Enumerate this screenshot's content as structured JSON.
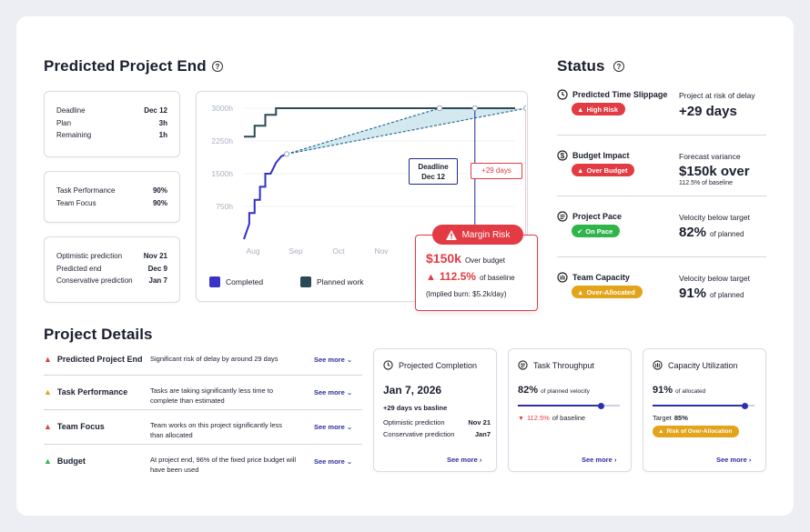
{
  "predicted": {
    "title": "Predicted Project End",
    "help": "?",
    "card1": [
      {
        "k": "Deadline",
        "v": "Dec 12"
      },
      {
        "k": "Plan",
        "v": "3h"
      },
      {
        "k": "Remaining",
        "v": "1h"
      }
    ],
    "card2": [
      {
        "k": "Task Performance",
        "v": "90%"
      },
      {
        "k": "Team Focus",
        "v": "90%"
      }
    ],
    "card3": [
      {
        "k": "Optimistic prediction",
        "v": "Nov 21"
      },
      {
        "k": "Predicted end",
        "v": "Dec 9"
      },
      {
        "k": "Conservative prediction",
        "v": "Jan 7"
      }
    ]
  },
  "chart_data": {
    "type": "line",
    "title": "",
    "y_ticks": [
      "3000h",
      "2250h",
      "1500h",
      "750h"
    ],
    "ylim": [
      0,
      3000
    ],
    "x_ticks": [
      "Aug",
      "Sep",
      "Oct",
      "Nov"
    ],
    "series": [
      {
        "name": "Completed",
        "color": "#2f2fcc",
        "points": [
          [
            0,
            0
          ],
          [
            0.5,
            350
          ],
          [
            0.5,
            600
          ],
          [
            1,
            600
          ],
          [
            1,
            900
          ],
          [
            1.5,
            900
          ],
          [
            1.5,
            1200
          ],
          [
            2,
            1200
          ],
          [
            2,
            1500
          ],
          [
            2.5,
            1500
          ],
          [
            3,
            1750
          ],
          [
            3.5,
            1900
          ],
          [
            4,
            1950
          ]
        ]
      },
      {
        "name": "Planned work",
        "color": "#2b4a55",
        "points": [
          [
            0,
            2350
          ],
          [
            1,
            2350
          ],
          [
            1,
            2600
          ],
          [
            2,
            2600
          ],
          [
            2,
            2850
          ],
          [
            3,
            2850
          ],
          [
            3,
            3000
          ],
          [
            12,
            3000
          ]
        ]
      }
    ],
    "legend": [
      "Completed",
      "Planned work"
    ],
    "deadline_label": "Deadline",
    "deadline_date": "Dec 12",
    "delay_label": "+29 days"
  },
  "risk": {
    "badge": "Margin Risk",
    "amount": "$150k",
    "amount_text": "Over budget",
    "pct": "112.5%",
    "pct_text": "of baseline",
    "burn": "(Implied burn: $5.2k/day)"
  },
  "status": {
    "title": "Status",
    "help": "?",
    "rows": [
      {
        "name": "Predicted Time Slippage",
        "pill": "High Risk",
        "pill_color": "#e23b43",
        "caption": "Project at risk of delay",
        "value": "+29 days",
        "value_suffix": "",
        "sub": ""
      },
      {
        "name": "Budget Impact",
        "pill": "Over Budget",
        "pill_color": "#e23b43",
        "caption": "Forecast variance",
        "value": "$150k over",
        "value_suffix": "",
        "sub": "112.5% of baseline"
      },
      {
        "name": "Project Pace",
        "pill": "On Pace",
        "pill_color": "#2fb54a",
        "caption": "Velocity below target",
        "value": "82%",
        "value_suffix": "of planned",
        "sub": ""
      },
      {
        "name": "Team Capacity",
        "pill": "Over-Allocated",
        "pill_color": "#e3a41b",
        "caption": "Velocity below target",
        "value": "91%",
        "value_suffix": "of planned",
        "sub": ""
      }
    ]
  },
  "details": {
    "title": "Project Details",
    "rows": [
      {
        "name": "Predicted Project End",
        "desc": "Significant risk of delay by around 29 days",
        "more": "See more",
        "color": "#e23b43"
      },
      {
        "name": "Task Performance",
        "desc": "Tasks are taking significantly less time to complete than estimated",
        "more": "See more",
        "color": "#e3a41b"
      },
      {
        "name": "Team Focus",
        "desc": "Team works on this project significantly less than allocated",
        "more": "See more",
        "color": "#e23b43"
      },
      {
        "name": "Budget",
        "desc": "At project end, 96% of the fixed price budget will have been used",
        "more": "See more",
        "color": "#2fb54a"
      }
    ]
  },
  "completion": {
    "title": "Projected Completion",
    "date": "Jan 7, 2026",
    "vs": "+29 days vs basline",
    "opt_k": "Optimistic prediction",
    "opt_v": "Nov 21",
    "con_k": "Conservative prediction",
    "con_v": "Jan7",
    "more": "See more"
  },
  "throughput": {
    "title": "Task Throughput",
    "value": "82%",
    "value_text": "of planned velocity",
    "fill": 0.82,
    "delta": "112.5%",
    "delta_text": "of baseline",
    "more": "See more"
  },
  "capacity": {
    "title": "Capacity Utilization",
    "value": "91%",
    "value_text": "of allocated",
    "fill": 0.91,
    "target_k": "Target",
    "target_v": "85%",
    "pill": "Risk of Over-Allocation",
    "more": "See more"
  }
}
